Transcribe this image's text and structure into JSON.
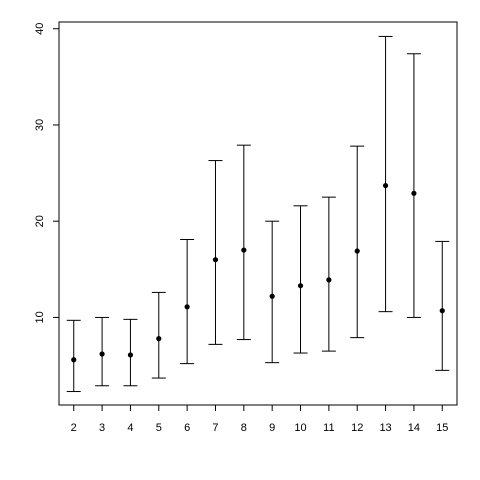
{
  "chart_data": {
    "type": "errorbar",
    "x": [
      2,
      3,
      4,
      5,
      6,
      7,
      8,
      9,
      10,
      11,
      12,
      13,
      14,
      15
    ],
    "values": [
      5.6,
      6.2,
      6.1,
      7.8,
      11.1,
      16.0,
      17.0,
      12.2,
      13.3,
      13.9,
      16.9,
      23.7,
      22.9,
      10.7
    ],
    "lower": [
      2.3,
      2.9,
      2.9,
      3.7,
      5.2,
      7.2,
      7.7,
      5.3,
      6.3,
      6.5,
      7.9,
      10.6,
      10.0,
      4.5
    ],
    "upper": [
      9.7,
      10.0,
      9.8,
      12.6,
      18.1,
      26.3,
      27.9,
      20.0,
      21.6,
      22.5,
      27.8,
      39.2,
      37.4,
      17.9
    ],
    "color": "#000000",
    "xlim": [
      1.48,
      15.52
    ],
    "ylim": [
      0.9,
      40.7
    ],
    "xticks": [
      2,
      3,
      4,
      5,
      6,
      7,
      8,
      9,
      10,
      11,
      12,
      13,
      14,
      15
    ],
    "yticks": [
      10,
      20,
      30,
      40
    ]
  }
}
